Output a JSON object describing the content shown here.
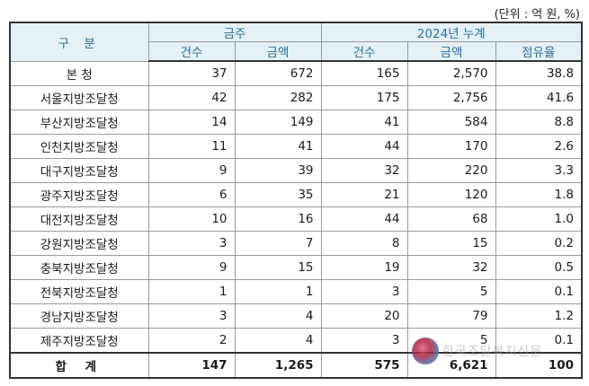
{
  "unit_note": "(단위 : 억 원, %)",
  "header": {
    "gubun": "구 분",
    "group_month": "금주",
    "group_ytd": "2024년 누계",
    "col_count": "건수",
    "col_amount": "금액",
    "col_share": "점유율"
  },
  "rows": [
    {
      "name": "본 청",
      "w_count": "37",
      "w_amount": "672",
      "y_count": "165",
      "y_amount": "2,570",
      "share": "38.8"
    },
    {
      "name": "서울지방조달청",
      "w_count": "42",
      "w_amount": "282",
      "y_count": "175",
      "y_amount": "2,756",
      "share": "41.6"
    },
    {
      "name": "부산지방조달청",
      "w_count": "14",
      "w_amount": "149",
      "y_count": "41",
      "y_amount": "584",
      "share": "8.8"
    },
    {
      "name": "인천지방조달청",
      "w_count": "11",
      "w_amount": "41",
      "y_count": "44",
      "y_amount": "170",
      "share": "2.6"
    },
    {
      "name": "대구지방조달청",
      "w_count": "9",
      "w_amount": "39",
      "y_count": "32",
      "y_amount": "220",
      "share": "3.3"
    },
    {
      "name": "광주지방조달청",
      "w_count": "6",
      "w_amount": "35",
      "y_count": "21",
      "y_amount": "120",
      "share": "1.8"
    },
    {
      "name": "대전지방조달청",
      "w_count": "10",
      "w_amount": "16",
      "y_count": "44",
      "y_amount": "68",
      "share": "1.0"
    },
    {
      "name": "강원지방조달청",
      "w_count": "3",
      "w_amount": "7",
      "y_count": "8",
      "y_amount": "15",
      "share": "0.2"
    },
    {
      "name": "충북지방조달청",
      "w_count": "9",
      "w_amount": "15",
      "y_count": "19",
      "y_amount": "32",
      "share": "0.5"
    },
    {
      "name": "전북지방조달청",
      "w_count": "1",
      "w_amount": "1",
      "y_count": "3",
      "y_amount": "5",
      "share": "0.1"
    },
    {
      "name": "경남지방조달청",
      "w_count": "3",
      "w_amount": "4",
      "y_count": "20",
      "y_amount": "79",
      "share": "1.2"
    },
    {
      "name": "제주지방조달청",
      "w_count": "2",
      "w_amount": "4",
      "y_count": "3",
      "y_amount": "5",
      "share": "0.1"
    }
  ],
  "total": {
    "name": "합 계",
    "w_count": "147",
    "w_amount": "1,265",
    "y_count": "575",
    "y_amount": "6,621",
    "share": "100"
  },
  "watermark": {
    "text": "한국조달복지신문",
    "icon": "logo-circle-icon"
  }
}
